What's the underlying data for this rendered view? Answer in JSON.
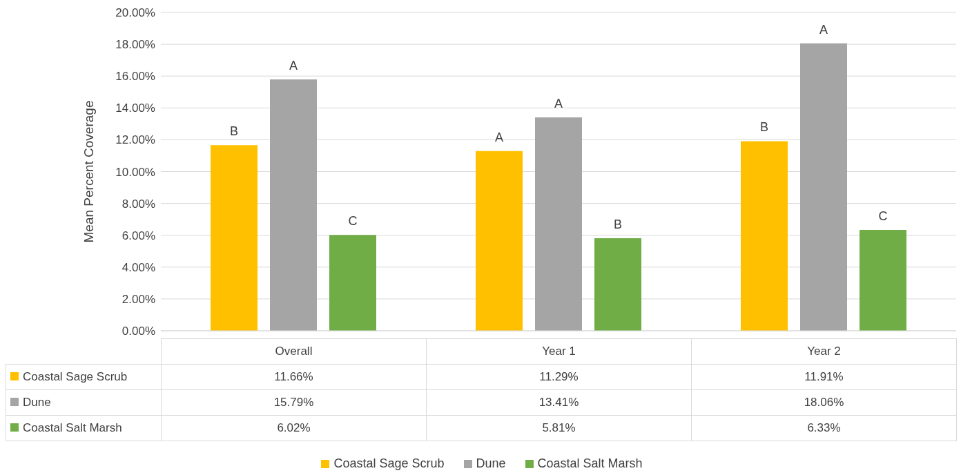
{
  "chart_data": {
    "type": "bar",
    "ylabel": "Mean Percent Coverage",
    "categories": [
      "Overall",
      "Year 1",
      "Year 2"
    ],
    "series": [
      {
        "name": "Coastal Sage Scrub",
        "color": "#ffc000",
        "values": [
          11.66,
          11.29,
          11.91
        ],
        "value_labels": [
          "11.66%",
          "11.29%",
          "11.91%"
        ]
      },
      {
        "name": "Dune",
        "color": "#a5a5a5",
        "values": [
          15.79,
          13.41,
          18.06
        ],
        "value_labels": [
          "15.79%",
          "13.41%",
          "18.06%"
        ]
      },
      {
        "name": "Coastal Salt Marsh",
        "color": "#70ad47",
        "values": [
          6.02,
          5.81,
          6.33
        ],
        "value_labels": [
          "6.02%",
          "5.81%",
          "6.33%"
        ]
      }
    ],
    "ylim": [
      0,
      20
    ],
    "yticks": [
      {
        "value": 0,
        "label": "0.00%"
      },
      {
        "value": 2,
        "label": "2.00%"
      },
      {
        "value": 4,
        "label": "4.00%"
      },
      {
        "value": 6,
        "label": "6.00%"
      },
      {
        "value": 8,
        "label": "8.00%"
      },
      {
        "value": 10,
        "label": "10.00%"
      },
      {
        "value": 12,
        "label": "12.00%"
      },
      {
        "value": 14,
        "label": "14.00%"
      },
      {
        "value": 16,
        "label": "16.00%"
      },
      {
        "value": 18,
        "label": "18.00%"
      },
      {
        "value": 20,
        "label": "20.00%"
      }
    ],
    "grid": "y",
    "legend": "bottom",
    "annotations": [
      "B",
      "A",
      "C",
      "A",
      "A",
      "B",
      "B",
      "A",
      "C"
    ]
  }
}
